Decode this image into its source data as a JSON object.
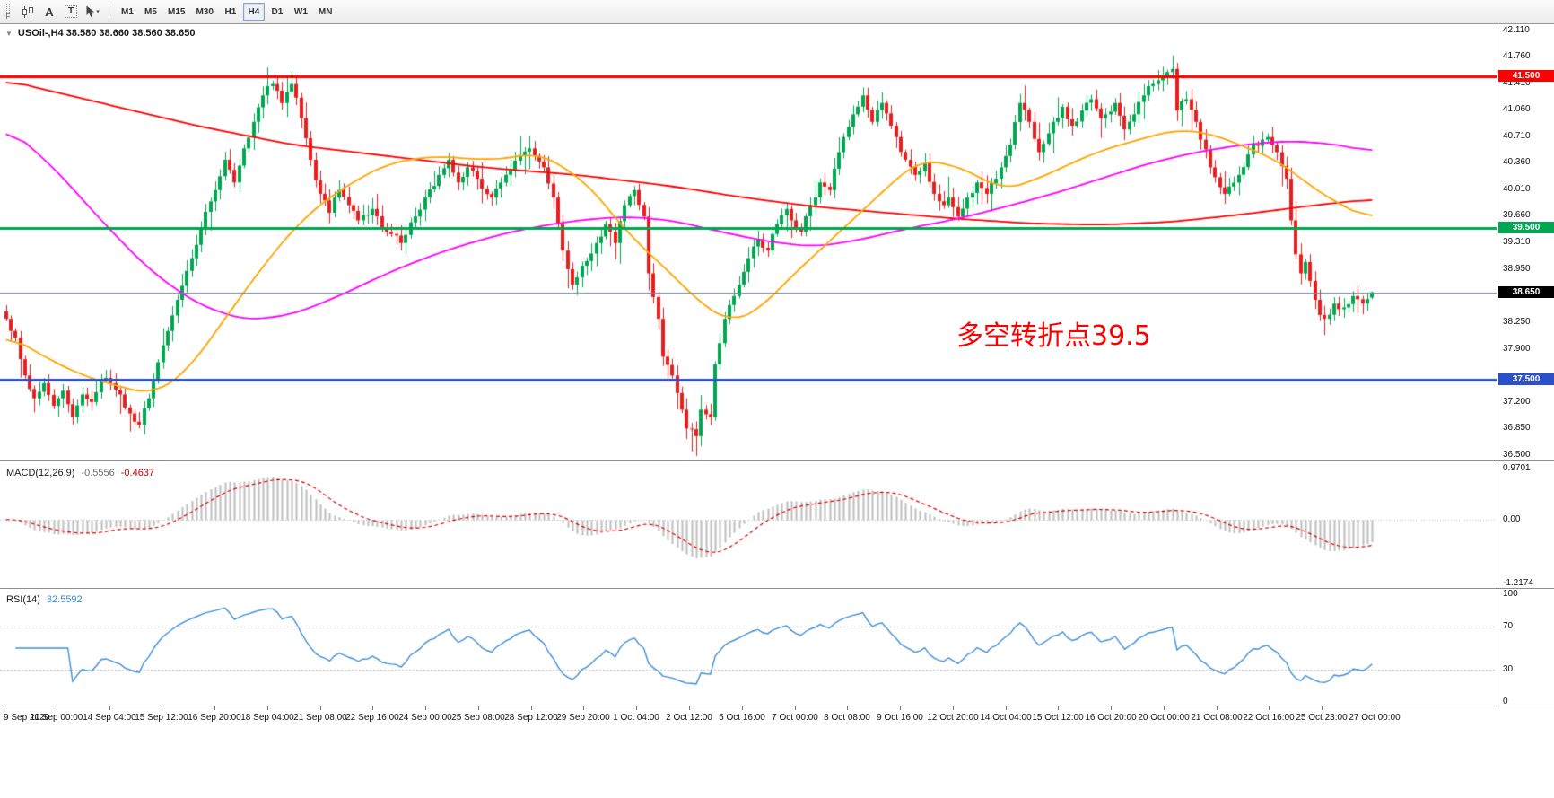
{
  "toolbar": {
    "dock_label": "F",
    "text_tool_label": "A",
    "textbox_tool_label": "T",
    "icons": {
      "chart_tool": "candlestick-chart-icon",
      "cursor_tool": "cursor-icon",
      "dropdown": "chevron-down-icon",
      "one_click": "collapse-arrow-icon"
    },
    "timeframes": [
      "M1",
      "M5",
      "M15",
      "M30",
      "H1",
      "H4",
      "D1",
      "W1",
      "MN"
    ],
    "active_timeframe": "H4"
  },
  "chart": {
    "symbol_ohlc": "USOil-,H4 38.580 38.660 38.560 38.650",
    "annotation": {
      "text": "多空转折点39.5",
      "color": "#ff0000"
    },
    "price_axis": {
      "max": 42.19,
      "min": 36.44,
      "labels": [
        "42.110",
        "41.760",
        "41.410",
        "41.060",
        "40.710",
        "40.360",
        "40.010",
        "39.660",
        "39.310",
        "38.950",
        "38.250",
        "37.900",
        "37.200",
        "36.850",
        "36.500"
      ]
    },
    "hlines": [
      {
        "price": 41.5,
        "badge": "41.500",
        "color": "#ff0000",
        "width": 3
      },
      {
        "price": 39.5,
        "badge": "39.500",
        "color": "#00a651",
        "width": 3
      },
      {
        "price": 37.5,
        "badge": "37.500",
        "color": "#2b50c8",
        "width": 3
      }
    ],
    "current_price": {
      "value": 38.65,
      "badge": "38.650",
      "line_color": "#6c87a8",
      "badge_bg": "#000000"
    },
    "time_axis": {
      "labels": [
        "9 Sep 2020",
        "11 Sep 00:00",
        "14 Sep 04:00",
        "15 Sep 12:00",
        "16 Sep 20:00",
        "18 Sep 04:00",
        "21 Sep 08:00",
        "22 Sep 16:00",
        "24 Sep 00:00",
        "25 Sep 08:00",
        "28 Sep 12:00",
        "29 Sep 20:00",
        "1 Oct 04:00",
        "2 Oct 12:00",
        "5 Oct 16:00",
        "7 Oct 00:00",
        "8 Oct 08:00",
        "9 Oct 16:00",
        "12 Oct 20:00",
        "14 Oct 04:00",
        "15 Oct 12:00",
        "16 Oct 20:00",
        "20 Oct 00:00",
        "21 Oct 08:00",
        "22 Oct 16:00",
        "25 Oct 23:00",
        "27 Oct 00:00"
      ]
    }
  },
  "macd": {
    "label": "MACD(12,26,9)",
    "value_main": "-0.5556",
    "value_signal": "-0.4637",
    "axis_labels": [
      "0.9701",
      "0.00",
      "-1.2174"
    ],
    "max": 0.9701,
    "min": -1.2174,
    "hist_color": "#bdbdbd",
    "signal_color": "#e00000"
  },
  "rsi": {
    "label": "RSI(14)",
    "value": "32.5592",
    "axis_labels": [
      "100",
      "70",
      "30",
      "0"
    ],
    "levels": [
      70,
      30
    ],
    "line_color": "#3e8fd8"
  },
  "chart_data": {
    "type": "candlestick",
    "symbol": "USOil-",
    "timeframe": "H4",
    "n_bars": 288,
    "up_color": "#00a651",
    "down_color": "#e81e1e",
    "close_anchors": [
      [
        0,
        38.3
      ],
      [
        2,
        38.05
      ],
      [
        4,
        37.55
      ],
      [
        6,
        37.25
      ],
      [
        8,
        37.45
      ],
      [
        10,
        37.15
      ],
      [
        12,
        37.35
      ],
      [
        14,
        37.0
      ],
      [
        16,
        37.3
      ],
      [
        18,
        37.2
      ],
      [
        20,
        37.5
      ],
      [
        22,
        37.45
      ],
      [
        24,
        37.3
      ],
      [
        26,
        37.05
      ],
      [
        28,
        36.9
      ],
      [
        30,
        37.25
      ],
      [
        33,
        37.95
      ],
      [
        36,
        38.55
      ],
      [
        39,
        39.1
      ],
      [
        41,
        39.5
      ],
      [
        43,
        39.85
      ],
      [
        44,
        40.0
      ],
      [
        46,
        40.4
      ],
      [
        48,
        40.1
      ],
      [
        50,
        40.55
      ],
      [
        52,
        40.9
      ],
      [
        54,
        41.25
      ],
      [
        56,
        41.4
      ],
      [
        58,
        41.15
      ],
      [
        60,
        41.4
      ],
      [
        62,
        40.95
      ],
      [
        64,
        40.4
      ],
      [
        66,
        39.95
      ],
      [
        68,
        39.7
      ],
      [
        70,
        40.0
      ],
      [
        72,
        39.8
      ],
      [
        74,
        39.6
      ],
      [
        77,
        39.75
      ],
      [
        80,
        39.45
      ],
      [
        83,
        39.3
      ],
      [
        86,
        39.65
      ],
      [
        88,
        39.9
      ],
      [
        91,
        40.2
      ],
      [
        93,
        40.4
      ],
      [
        95,
        40.1
      ],
      [
        97,
        40.3
      ],
      [
        99,
        40.15
      ],
      [
        102,
        39.9
      ],
      [
        105,
        40.2
      ],
      [
        108,
        40.45
      ],
      [
        110,
        40.55
      ],
      [
        113,
        40.3
      ],
      [
        115,
        39.9
      ],
      [
        117,
        39.2
      ],
      [
        119,
        38.75
      ],
      [
        121,
        39.0
      ],
      [
        124,
        39.3
      ],
      [
        126,
        39.55
      ],
      [
        128,
        39.3
      ],
      [
        130,
        39.8
      ],
      [
        132,
        40.0
      ],
      [
        134,
        39.65
      ],
      [
        135,
        38.9
      ],
      [
        137,
        38.3
      ],
      [
        138,
        37.8
      ],
      [
        140,
        37.55
      ],
      [
        142,
        37.1
      ],
      [
        143,
        36.85
      ],
      [
        145,
        36.75
      ],
      [
        146,
        37.1
      ],
      [
        148,
        37.0
      ],
      [
        149,
        37.7
      ],
      [
        151,
        38.3
      ],
      [
        153,
        38.6
      ],
      [
        154,
        38.75
      ],
      [
        156,
        39.1
      ],
      [
        158,
        39.35
      ],
      [
        160,
        39.2
      ],
      [
        162,
        39.55
      ],
      [
        164,
        39.75
      ],
      [
        165,
        39.6
      ],
      [
        167,
        39.45
      ],
      [
        169,
        39.8
      ],
      [
        171,
        40.1
      ],
      [
        173,
        40.0
      ],
      [
        175,
        40.5
      ],
      [
        176,
        40.7
      ],
      [
        178,
        41.0
      ],
      [
        180,
        41.25
      ],
      [
        182,
        40.9
      ],
      [
        184,
        41.15
      ],
      [
        186,
        40.85
      ],
      [
        187,
        40.7
      ],
      [
        189,
        40.4
      ],
      [
        191,
        40.2
      ],
      [
        193,
        40.35
      ],
      [
        195,
        39.95
      ],
      [
        197,
        39.8
      ],
      [
        198,
        39.9
      ],
      [
        200,
        39.65
      ],
      [
        202,
        39.9
      ],
      [
        204,
        40.1
      ],
      [
        206,
        39.95
      ],
      [
        208,
        40.15
      ],
      [
        209,
        40.3
      ],
      [
        211,
        40.6
      ],
      [
        213,
        41.15
      ],
      [
        215,
        40.9
      ],
      [
        217,
        40.5
      ],
      [
        219,
        40.75
      ],
      [
        220,
        40.9
      ],
      [
        222,
        41.1
      ],
      [
        224,
        40.85
      ],
      [
        226,
        41.05
      ],
      [
        228,
        41.2
      ],
      [
        230,
        40.95
      ],
      [
        231,
        41.0
      ],
      [
        233,
        41.15
      ],
      [
        235,
        40.8
      ],
      [
        237,
        41.0
      ],
      [
        239,
        41.25
      ],
      [
        241,
        41.4
      ],
      [
        243,
        41.5
      ],
      [
        245,
        41.6
      ],
      [
        246,
        41.05
      ],
      [
        248,
        41.2
      ],
      [
        250,
        40.9
      ],
      [
        253,
        40.3
      ],
      [
        256,
        39.95
      ],
      [
        259,
        40.2
      ],
      [
        262,
        40.6
      ],
      [
        265,
        40.7
      ],
      [
        267,
        40.5
      ],
      [
        269,
        40.15
      ],
      [
        270,
        39.6
      ],
      [
        271,
        39.15
      ],
      [
        272,
        38.9
      ],
      [
        273,
        39.05
      ],
      [
        274,
        38.8
      ],
      [
        275,
        38.55
      ],
      [
        276,
        38.35
      ],
      [
        277,
        38.3
      ],
      [
        279,
        38.5
      ],
      [
        281,
        38.45
      ],
      [
        283,
        38.6
      ],
      [
        285,
        38.5
      ],
      [
        287,
        38.65
      ]
    ],
    "bar_overrides": [
      {
        "i": 55,
        "high": 41.62
      },
      {
        "i": 60,
        "high": 41.58
      },
      {
        "i": 144,
        "low": 36.55
      },
      {
        "i": 245,
        "high": 41.78
      },
      {
        "i": 287,
        "open": 38.58,
        "high": 38.66,
        "low": 38.56,
        "close": 38.65
      }
    ],
    "ma_lines": [
      {
        "name": "ma-slow-red",
        "color": "#ff0000",
        "anchors": [
          [
            0,
            41.45
          ],
          [
            20,
            41.15
          ],
          [
            40,
            40.85
          ],
          [
            60,
            40.6
          ],
          [
            80,
            40.45
          ],
          [
            100,
            40.3
          ],
          [
            120,
            40.2
          ],
          [
            140,
            40.05
          ],
          [
            155,
            39.9
          ],
          [
            170,
            39.78
          ],
          [
            185,
            39.7
          ],
          [
            200,
            39.62
          ],
          [
            215,
            39.56
          ],
          [
            230,
            39.54
          ],
          [
            245,
            39.58
          ],
          [
            260,
            39.68
          ],
          [
            275,
            39.8
          ],
          [
            287,
            39.88
          ]
        ]
      },
      {
        "name": "ma-medium-magenta",
        "color": "#ff00ff",
        "anchors": [
          [
            0,
            40.85
          ],
          [
            10,
            40.3
          ],
          [
            20,
            39.6
          ],
          [
            30,
            38.95
          ],
          [
            40,
            38.5
          ],
          [
            50,
            38.28
          ],
          [
            60,
            38.35
          ],
          [
            70,
            38.6
          ],
          [
            80,
            38.9
          ],
          [
            90,
            39.15
          ],
          [
            100,
            39.35
          ],
          [
            110,
            39.5
          ],
          [
            120,
            39.6
          ],
          [
            130,
            39.65
          ],
          [
            140,
            39.6
          ],
          [
            150,
            39.45
          ],
          [
            160,
            39.32
          ],
          [
            170,
            39.25
          ],
          [
            180,
            39.35
          ],
          [
            190,
            39.5
          ],
          [
            200,
            39.62
          ],
          [
            210,
            39.78
          ],
          [
            220,
            39.95
          ],
          [
            230,
            40.15
          ],
          [
            240,
            40.35
          ],
          [
            250,
            40.5
          ],
          [
            260,
            40.6
          ],
          [
            270,
            40.65
          ],
          [
            280,
            40.6
          ],
          [
            287,
            40.5
          ]
        ]
      },
      {
        "name": "ma-fast-orange",
        "color": "#ffa500",
        "anchors": [
          [
            0,
            38.1
          ],
          [
            8,
            37.8
          ],
          [
            16,
            37.55
          ],
          [
            24,
            37.4
          ],
          [
            31,
            37.3
          ],
          [
            38,
            37.6
          ],
          [
            46,
            38.3
          ],
          [
            54,
            39.0
          ],
          [
            62,
            39.6
          ],
          [
            70,
            40.0
          ],
          [
            80,
            40.35
          ],
          [
            90,
            40.45
          ],
          [
            100,
            40.4
          ],
          [
            106,
            40.42
          ],
          [
            112,
            40.5
          ],
          [
            122,
            40.1
          ],
          [
            131,
            39.4
          ],
          [
            138,
            39.0
          ],
          [
            146,
            38.5
          ],
          [
            152,
            38.25
          ],
          [
            158,
            38.4
          ],
          [
            164,
            38.8
          ],
          [
            170,
            39.15
          ],
          [
            176,
            39.5
          ],
          [
            182,
            39.85
          ],
          [
            188,
            40.2
          ],
          [
            192,
            40.4
          ],
          [
            198,
            40.35
          ],
          [
            204,
            40.2
          ],
          [
            209,
            40.0
          ],
          [
            215,
            40.1
          ],
          [
            222,
            40.3
          ],
          [
            229,
            40.5
          ],
          [
            237,
            40.65
          ],
          [
            246,
            40.8
          ],
          [
            253,
            40.75
          ],
          [
            261,
            40.55
          ],
          [
            267,
            40.4
          ],
          [
            273,
            40.1
          ],
          [
            279,
            39.85
          ],
          [
            287,
            39.6
          ]
        ]
      }
    ]
  }
}
